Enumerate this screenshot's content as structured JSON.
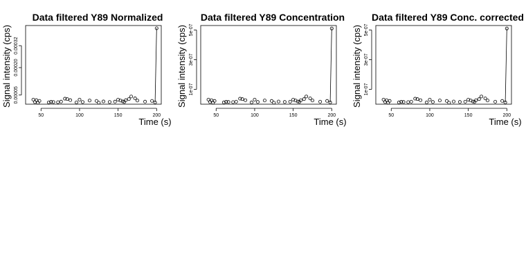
{
  "chart_data": [
    {
      "type": "scatter",
      "title": "Data filtered Y89 Normalized",
      "xlabel": "Time (s)",
      "ylabel": "Signal intensity (cps)",
      "xlim": [
        30,
        206
      ],
      "ylim": [
        0,
        0.00043
      ],
      "x_ticks": [
        50,
        100,
        150,
        200
      ],
      "x_tick_labels": [
        "50",
        "100",
        "150",
        "200"
      ],
      "y_ticks": [
        5e-05,
        0.0002,
        0.00032
      ],
      "y_tick_labels": [
        "0.00005",
        "0.00020",
        "0.00032"
      ],
      "grid": false,
      "points": [
        {
          "x": 40,
          "y": 2.5e-05
        },
        {
          "x": 42,
          "y": 1.2e-05
        },
        {
          "x": 44,
          "y": 2.2e-05
        },
        {
          "x": 46,
          "y": 8e-06
        },
        {
          "x": 48,
          "y": 1.8e-05
        },
        {
          "x": 60,
          "y": 1e-05
        },
        {
          "x": 63,
          "y": 1.3e-05
        },
        {
          "x": 66,
          "y": 1.2e-05
        },
        {
          "x": 72,
          "y": 1.1e-05
        },
        {
          "x": 76,
          "y": 1.4e-05
        },
        {
          "x": 81,
          "y": 3e-05
        },
        {
          "x": 84,
          "y": 2.8e-05
        },
        {
          "x": 88,
          "y": 2.2e-05
        },
        {
          "x": 96,
          "y": 1e-05
        },
        {
          "x": 100,
          "y": 2.5e-05
        },
        {
          "x": 104,
          "y": 1.2e-05
        },
        {
          "x": 113,
          "y": 2e-05
        },
        {
          "x": 122,
          "y": 1.8e-05
        },
        {
          "x": 125,
          "y": 8e-06
        },
        {
          "x": 131,
          "y": 1.5e-05
        },
        {
          "x": 139,
          "y": 1.2e-05
        },
        {
          "x": 146,
          "y": 1.4e-05
        },
        {
          "x": 150,
          "y": 2.5e-05
        },
        {
          "x": 153,
          "y": 2e-05
        },
        {
          "x": 156,
          "y": 1.5e-05
        },
        {
          "x": 158,
          "y": 1.2e-05
        },
        {
          "x": 160,
          "y": 2.2e-05
        },
        {
          "x": 164,
          "y": 2.8e-05
        },
        {
          "x": 167,
          "y": 4.2e-05
        },
        {
          "x": 172,
          "y": 3.2e-05
        },
        {
          "x": 175,
          "y": 2e-05
        },
        {
          "x": 185,
          "y": 1.4e-05
        },
        {
          "x": 194,
          "y": 1.8e-05
        },
        {
          "x": 198,
          "y": 1e-05
        },
        {
          "x": 200,
          "y": 0.000415
        }
      ],
      "line_segments": [
        [
          {
            "x": 198,
            "y": 1e-05
          },
          {
            "x": 200,
            "y": 0.000415
          }
        ]
      ]
    },
    {
      "type": "scatter",
      "title": "Data filtered Y89 Concentration",
      "xlabel": "Time (s)",
      "ylabel": "Signal intensity (cps)",
      "xlim": [
        30,
        206
      ],
      "ylim": [
        0,
        5.3e-07
      ],
      "x_ticks": [
        50,
        100,
        150,
        200
      ],
      "x_tick_labels": [
        "50",
        "100",
        "150",
        "200"
      ],
      "y_ticks": [
        1e-07,
        3e-07,
        5e-07
      ],
      "y_tick_labels": [
        "1e-07",
        "3e-07",
        "5e-07"
      ],
      "grid": false,
      "points": [
        {
          "x": 40,
          "y": 3.1e-08
        },
        {
          "x": 42,
          "y": 1.5e-08
        },
        {
          "x": 44,
          "y": 2.7e-08
        },
        {
          "x": 46,
          "y": 1e-08
        },
        {
          "x": 48,
          "y": 2.2e-08
        },
        {
          "x": 60,
          "y": 1.2e-08
        },
        {
          "x": 63,
          "y": 1.6e-08
        },
        {
          "x": 66,
          "y": 1.5e-08
        },
        {
          "x": 72,
          "y": 1.4e-08
        },
        {
          "x": 76,
          "y": 1.7e-08
        },
        {
          "x": 81,
          "y": 3.7e-08
        },
        {
          "x": 84,
          "y": 3.4e-08
        },
        {
          "x": 88,
          "y": 2.7e-08
        },
        {
          "x": 96,
          "y": 1.2e-08
        },
        {
          "x": 100,
          "y": 3.1e-08
        },
        {
          "x": 104,
          "y": 1.5e-08
        },
        {
          "x": 113,
          "y": 2.5e-08
        },
        {
          "x": 122,
          "y": 2.2e-08
        },
        {
          "x": 125,
          "y": 1e-08
        },
        {
          "x": 131,
          "y": 1.8e-08
        },
        {
          "x": 139,
          "y": 1.5e-08
        },
        {
          "x": 146,
          "y": 1.7e-08
        },
        {
          "x": 150,
          "y": 3.1e-08
        },
        {
          "x": 153,
          "y": 2.5e-08
        },
        {
          "x": 156,
          "y": 1.8e-08
        },
        {
          "x": 158,
          "y": 1.5e-08
        },
        {
          "x": 160,
          "y": 2.7e-08
        },
        {
          "x": 164,
          "y": 3.4e-08
        },
        {
          "x": 167,
          "y": 5.2e-08
        },
        {
          "x": 172,
          "y": 3.9e-08
        },
        {
          "x": 175,
          "y": 2.5e-08
        },
        {
          "x": 185,
          "y": 1.7e-08
        },
        {
          "x": 194,
          "y": 2.2e-08
        },
        {
          "x": 198,
          "y": 1.2e-08
        },
        {
          "x": 200,
          "y": 5.1e-07
        }
      ],
      "line_segments": [
        [
          {
            "x": 198,
            "y": 1.2e-08
          },
          {
            "x": 200,
            "y": 5.1e-07
          }
        ]
      ]
    },
    {
      "type": "scatter",
      "title": "Data filtered Y89 Conc. corrected",
      "xlabel": "Time (s)",
      "ylabel": "Signal intensity (cps)",
      "xlim": [
        30,
        206
      ],
      "ylim": [
        0,
        5.3e-07
      ],
      "x_ticks": [
        50,
        100,
        150,
        200
      ],
      "x_tick_labels": [
        "50",
        "100",
        "150",
        "200"
      ],
      "y_ticks": [
        1e-07,
        3e-07,
        5e-07
      ],
      "y_tick_labels": [
        "1e-07",
        "3e-07",
        "5e-07"
      ],
      "grid": false,
      "points": [
        {
          "x": 40,
          "y": 3.1e-08
        },
        {
          "x": 42,
          "y": 1.5e-08
        },
        {
          "x": 44,
          "y": 2.7e-08
        },
        {
          "x": 46,
          "y": 1e-08
        },
        {
          "x": 48,
          "y": 2.2e-08
        },
        {
          "x": 60,
          "y": 1.2e-08
        },
        {
          "x": 63,
          "y": 1.6e-08
        },
        {
          "x": 66,
          "y": 1.5e-08
        },
        {
          "x": 72,
          "y": 1.4e-08
        },
        {
          "x": 76,
          "y": 1.7e-08
        },
        {
          "x": 81,
          "y": 3.7e-08
        },
        {
          "x": 84,
          "y": 3.4e-08
        },
        {
          "x": 88,
          "y": 2.7e-08
        },
        {
          "x": 96,
          "y": 1.2e-08
        },
        {
          "x": 100,
          "y": 3.1e-08
        },
        {
          "x": 104,
          "y": 1.5e-08
        },
        {
          "x": 113,
          "y": 2.5e-08
        },
        {
          "x": 122,
          "y": 2.2e-08
        },
        {
          "x": 125,
          "y": 1e-08
        },
        {
          "x": 131,
          "y": 1.8e-08
        },
        {
          "x": 139,
          "y": 1.5e-08
        },
        {
          "x": 146,
          "y": 1.7e-08
        },
        {
          "x": 150,
          "y": 3.1e-08
        },
        {
          "x": 153,
          "y": 2.5e-08
        },
        {
          "x": 156,
          "y": 1.8e-08
        },
        {
          "x": 158,
          "y": 1.5e-08
        },
        {
          "x": 160,
          "y": 2.7e-08
        },
        {
          "x": 164,
          "y": 3.4e-08
        },
        {
          "x": 167,
          "y": 5.2e-08
        },
        {
          "x": 172,
          "y": 3.9e-08
        },
        {
          "x": 175,
          "y": 2.5e-08
        },
        {
          "x": 185,
          "y": 1.7e-08
        },
        {
          "x": 194,
          "y": 2.2e-08
        },
        {
          "x": 198,
          "y": 1.2e-08
        },
        {
          "x": 200,
          "y": 5.1e-07
        }
      ],
      "line_segments": [
        [
          {
            "x": 198,
            "y": 1.2e-08
          },
          {
            "x": 200,
            "y": 5.1e-07
          }
        ]
      ]
    }
  ]
}
